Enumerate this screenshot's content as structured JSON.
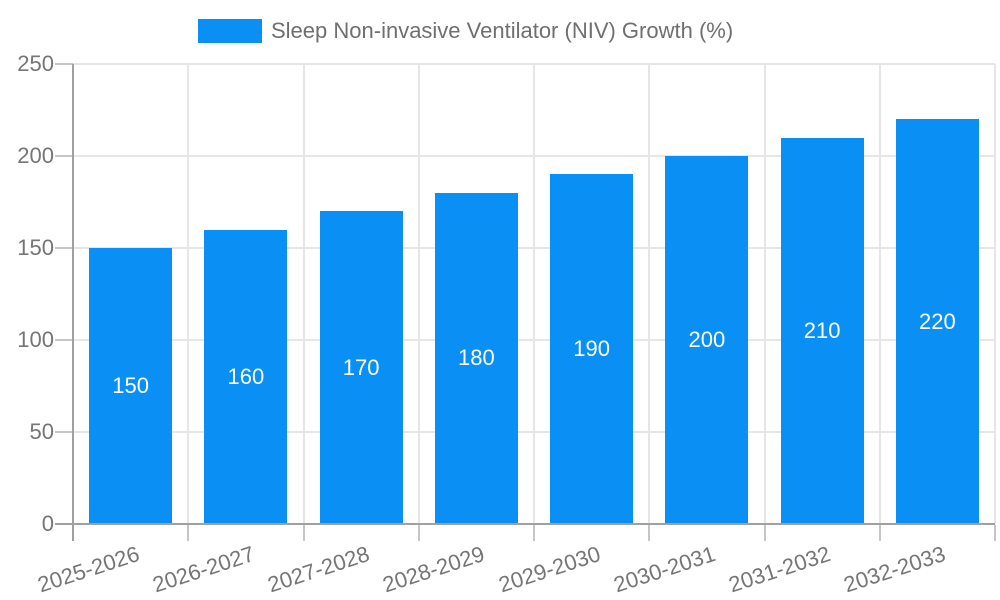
{
  "chart_data": {
    "type": "bar",
    "title": "",
    "legend": {
      "label": "Sleep Non-invasive Ventilator (NIV) Growth (%)",
      "position": "top"
    },
    "categories": [
      "2025-2026",
      "2026-2027",
      "2027-2028",
      "2028-2029",
      "2029-2030",
      "2030-2031",
      "2031-2032",
      "2032-2033"
    ],
    "values": [
      150,
      160,
      170,
      180,
      190,
      200,
      210,
      220
    ],
    "value_labels_shown": true,
    "xlabel": "",
    "ylabel": "",
    "ylim": [
      0,
      250
    ],
    "yticks": [
      0,
      50,
      100,
      150,
      200,
      250
    ],
    "grid": {
      "horizontal": true,
      "vertical": true
    },
    "x_label_rotation_deg": -18,
    "colors": {
      "bar": "#0a90f5",
      "axis_line": "#a0a0a0",
      "gridline": "#e6e6e6",
      "tick": "#c6c6c6",
      "axis_label": "#757575",
      "legend_text": "#6f6f6f",
      "value_label": "#ffffff",
      "background": "#ffffff"
    }
  }
}
